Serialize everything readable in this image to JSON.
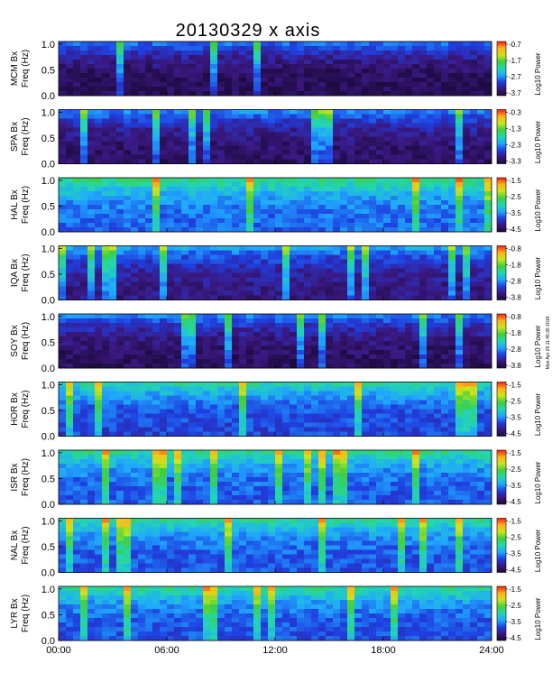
{
  "chart_data": {
    "type": "heatmap",
    "title": "20130329  x axis",
    "x_tick_labels": [
      "00:00",
      "06:00",
      "12:00",
      "18:00",
      "24:00"
    ],
    "x_range_hours": [
      0,
      24
    ],
    "y_range_hz": [
      0,
      1.05
    ],
    "y_tick_labels": [
      "0.0",
      "0.5",
      "1.0"
    ],
    "colorbar_label": "Log10 Power",
    "colormap": [
      "#1a0a3a",
      "#3a1880",
      "#1f3fe0",
      "#1fa7ff",
      "#22d6b0",
      "#3fcf3f",
      "#c8e61a",
      "#ffb21a",
      "#ff1e10"
    ],
    "side_note": "Mon Apr 29 11:45:26 2019",
    "panels": [
      {
        "station": "MCM",
        "ylabel_top": "MCM Bx",
        "ylabel_bottom": "Freq (Hz)",
        "cbar_ticks": [
          "-0.7",
          "-1.7",
          "-2.7",
          "-3.7"
        ],
        "base_power": 0.05
      },
      {
        "station": "SPA",
        "ylabel_top": "SPA Bx",
        "ylabel_bottom": "Freq (Hz)",
        "cbar_ticks": [
          "-0.3",
          "-1.3",
          "-2.3",
          "-3.3"
        ],
        "base_power": 0.08
      },
      {
        "station": "HAL",
        "ylabel_top": "HAL Bx",
        "ylabel_bottom": "Freq (Hz)",
        "cbar_ticks": [
          "-1.5",
          "-2.5",
          "-3.5",
          "-4.5"
        ],
        "base_power": 0.3
      },
      {
        "station": "IQA",
        "ylabel_top": "IQA Bx",
        "ylabel_bottom": "Freq (Hz)",
        "cbar_ticks": [
          "-0.8",
          "-1.8",
          "-2.8",
          "-3.8"
        ],
        "base_power": 0.12
      },
      {
        "station": "SOY",
        "ylabel_top": "SOY Bx",
        "ylabel_bottom": "Freq (Hz)",
        "cbar_ticks": [
          "-0.8",
          "-1.8",
          "-2.8",
          "-3.8"
        ],
        "base_power": 0.07
      },
      {
        "station": "HOR",
        "ylabel_top": "HOR Bx",
        "ylabel_bottom": "Freq (Hz)",
        "cbar_ticks": [
          "-1.5",
          "-2.5",
          "-3.5",
          "-4.5"
        ],
        "base_power": 0.25
      },
      {
        "station": "ISR",
        "ylabel_top": "ISR Bx",
        "ylabel_bottom": "Freq (Hz)",
        "cbar_ticks": [
          "-1.5",
          "-2.5",
          "-3.5",
          "-4.5"
        ],
        "base_power": 0.28
      },
      {
        "station": "NAL",
        "ylabel_top": "NAL Bx",
        "ylabel_bottom": "Freq (Hz)",
        "cbar_ticks": [
          "-1.5",
          "-2.5",
          "-3.5",
          "-4.5"
        ],
        "base_power": 0.27
      },
      {
        "station": "LYR",
        "ylabel_top": "LYR Bx",
        "ylabel_bottom": "Freq (Hz)",
        "cbar_ticks": [
          "-1.5",
          "-2.5",
          "-3.5",
          "-4.5"
        ],
        "base_power": 0.27
      }
    ]
  }
}
